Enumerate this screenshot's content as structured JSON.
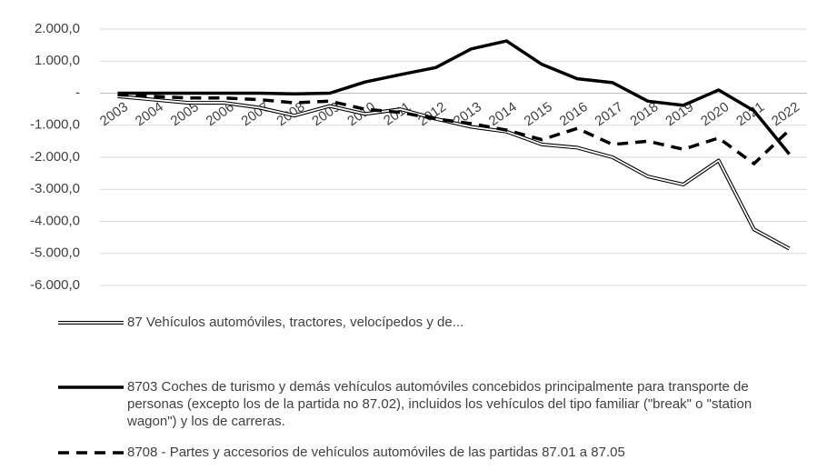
{
  "chart_data": {
    "type": "line",
    "categories": [
      "2003",
      "2004",
      "2005",
      "2006",
      "2007",
      "2008",
      "2009",
      "2010",
      "2011",
      "2012",
      "2013",
      "2014",
      "2015",
      "2016",
      "2017",
      "2018",
      "2019",
      "2020",
      "2021",
      "2022"
    ],
    "series": [
      {
        "name": "87  Vehículos automóviles, tractores, velocípedos y de...",
        "color": "#000000",
        "style": "double",
        "values": [
          -100,
          -200,
          -300,
          -300,
          -450,
          -700,
          -400,
          -650,
          -500,
          -800,
          -1050,
          -1200,
          -1600,
          -1700,
          -2000,
          -2600,
          -2850,
          -2100,
          -4250,
          -4850
        ]
      },
      {
        "name": "8703 Coches de turismo y demás vehículos automóviles concebidos principalmente para transporte de personas (excepto los de la partida no 87.02), incluidos los vehículos del tipo familiar (\"break\" o \"station wagon\") y los de carreras.",
        "color": "#000000",
        "style": "solid",
        "values": [
          0,
          0,
          0,
          0,
          0,
          -20,
          0,
          350,
          580,
          800,
          1380,
          1630,
          900,
          450,
          330,
          -250,
          -380,
          100,
          -550,
          -1900
        ]
      },
      {
        "name": "8708 - Partes y accesorios de vehículos automóviles de las partidas 87.01 a 87.05",
        "color": "#000000",
        "style": "dashed",
        "values": [
          -50,
          -100,
          -150,
          -150,
          -200,
          -300,
          -250,
          -500,
          -600,
          -800,
          -950,
          -1150,
          -1450,
          -1100,
          -1600,
          -1500,
          -1750,
          -1400,
          -2200,
          -1150
        ]
      }
    ],
    "ylim": [
      -6000,
      2000
    ],
    "yticks": [
      {
        "value": -6000,
        "label": "-6.000,0"
      },
      {
        "value": -5000,
        "label": "-5.000,0"
      },
      {
        "value": -4000,
        "label": "-4.000,0"
      },
      {
        "value": -3000,
        "label": "-3.000,0"
      },
      {
        "value": -2000,
        "label": "-2.000,0"
      },
      {
        "value": -1000,
        "label": "-1.000,0"
      },
      {
        "value": 0,
        "label": "-"
      },
      {
        "value": 1000,
        "label": "1.000,0"
      },
      {
        "value": 2000,
        "label": "2.000,0"
      }
    ],
    "grid": true
  }
}
